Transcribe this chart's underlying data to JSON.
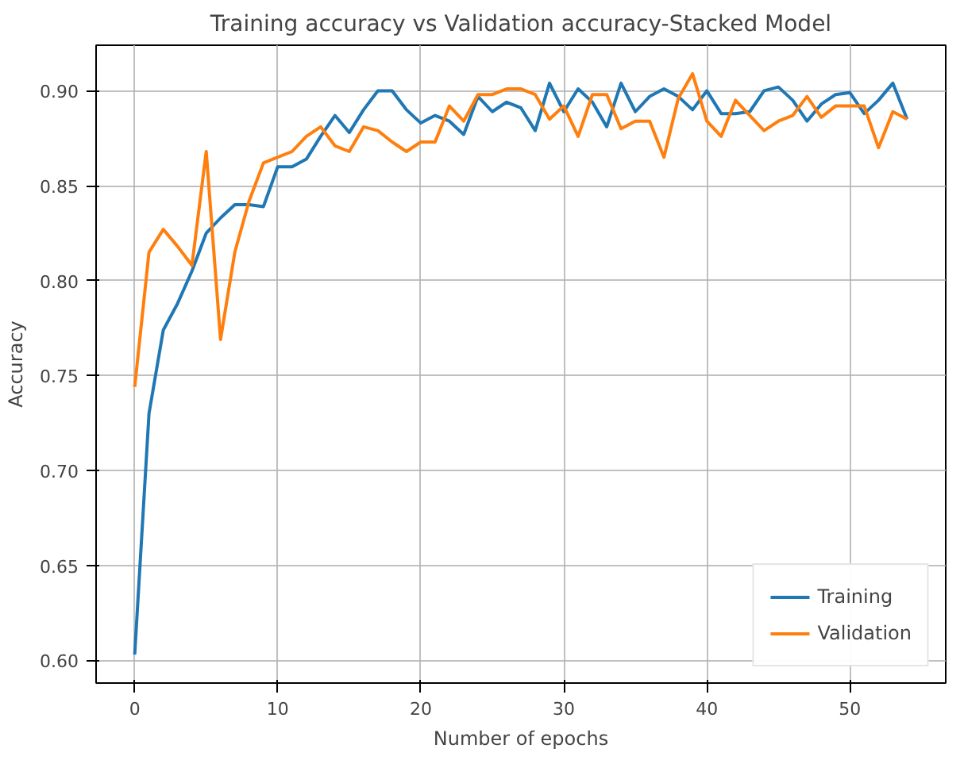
{
  "chart_data": {
    "type": "line",
    "title": "Training accuracy vs Validation accuracy-Stacked Model",
    "xlabel": "Number of epochs",
    "ylabel": "Accuracy",
    "x": [
      0,
      1,
      2,
      3,
      4,
      5,
      6,
      7,
      8,
      9,
      10,
      11,
      12,
      13,
      14,
      15,
      16,
      17,
      18,
      19,
      20,
      21,
      22,
      23,
      24,
      25,
      26,
      27,
      28,
      29,
      30,
      31,
      32,
      33,
      34,
      35,
      36,
      37,
      38,
      39,
      40,
      41,
      42,
      43,
      44,
      45,
      46,
      47,
      48,
      49,
      50,
      51,
      52,
      53,
      54
    ],
    "series": [
      {
        "name": "Training",
        "color": "#1f77b4",
        "values": [
          0.603,
          0.73,
          0.774,
          0.788,
          0.805,
          0.825,
          0.833,
          0.84,
          0.84,
          0.839,
          0.86,
          0.86,
          0.864,
          0.876,
          0.887,
          0.878,
          0.89,
          0.9,
          0.9,
          0.89,
          0.883,
          0.887,
          0.884,
          0.877,
          0.897,
          0.889,
          0.894,
          0.891,
          0.879,
          0.904,
          0.889,
          0.901,
          0.894,
          0.881,
          0.904,
          0.889,
          0.897,
          0.901,
          0.897,
          0.89,
          0.9,
          0.888,
          0.888,
          0.889,
          0.9,
          0.902,
          0.895,
          0.884,
          0.893,
          0.898,
          0.899,
          0.888,
          0.895,
          0.904,
          0.885
        ]
      },
      {
        "name": "Validation",
        "color": "#ff7f0e",
        "values": [
          0.744,
          0.815,
          0.827,
          0.818,
          0.808,
          0.868,
          0.769,
          0.815,
          0.842,
          0.862,
          0.865,
          0.868,
          0.876,
          0.881,
          0.871,
          0.868,
          0.881,
          0.879,
          0.873,
          0.868,
          0.873,
          0.873,
          0.892,
          0.884,
          0.898,
          0.898,
          0.901,
          0.901,
          0.898,
          0.885,
          0.892,
          0.876,
          0.898,
          0.898,
          0.88,
          0.884,
          0.884,
          0.865,
          0.896,
          0.909,
          0.884,
          0.876,
          0.895,
          0.887,
          0.879,
          0.884,
          0.887,
          0.897,
          0.886,
          0.892,
          0.892,
          0.892,
          0.87,
          0.889,
          0.885
        ]
      }
    ],
    "xlim": [
      -2.7,
      56.7
    ],
    "ylim": [
      0.588,
      0.924
    ],
    "xticks": [
      0,
      10,
      20,
      30,
      40,
      50
    ],
    "yticks": [
      {
        "value": 0.6,
        "label": "0.60"
      },
      {
        "value": 0.65,
        "label": "0.65"
      },
      {
        "value": 0.7,
        "label": "0.70"
      },
      {
        "value": 0.75,
        "label": "0.75"
      },
      {
        "value": 0.8,
        "label": "0.80"
      },
      {
        "value": 0.85,
        "label": "0.85"
      },
      {
        "value": 0.9,
        "label": "0.90"
      }
    ],
    "grid": true,
    "legend": "bottom right",
    "line_style": "solid"
  }
}
